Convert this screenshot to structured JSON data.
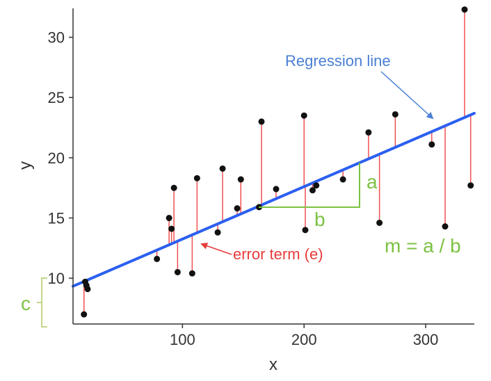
{
  "chart_data": {
    "type": "scatter",
    "xlabel": "x",
    "ylabel": "y",
    "xlim": [
      10,
      340
    ],
    "ylim": [
      6.2,
      32.4
    ],
    "x_ticks": [
      100,
      200,
      300
    ],
    "y_ticks": [
      10,
      15,
      20,
      25,
      30
    ],
    "grid": false,
    "regression": {
      "intercept": 8.9,
      "slope": 0.0435
    },
    "points": [
      {
        "x": 20,
        "y": 9.7
      },
      {
        "x": 21,
        "y": 9.4
      },
      {
        "x": 22,
        "y": 9.1
      },
      {
        "x": 19,
        "y": 7.0
      },
      {
        "x": 79,
        "y": 11.6
      },
      {
        "x": 89,
        "y": 15.0
      },
      {
        "x": 91,
        "y": 14.1
      },
      {
        "x": 93,
        "y": 17.5
      },
      {
        "x": 96,
        "y": 10.5
      },
      {
        "x": 108,
        "y": 10.4
      },
      {
        "x": 112,
        "y": 18.3
      },
      {
        "x": 129,
        "y": 13.8
      },
      {
        "x": 133,
        "y": 19.1
      },
      {
        "x": 145,
        "y": 15.8
      },
      {
        "x": 148,
        "y": 18.2
      },
      {
        "x": 163,
        "y": 15.9
      },
      {
        "x": 165,
        "y": 23.0
      },
      {
        "x": 177,
        "y": 17.4
      },
      {
        "x": 200,
        "y": 23.5
      },
      {
        "x": 201,
        "y": 14.0
      },
      {
        "x": 207,
        "y": 17.3
      },
      {
        "x": 210,
        "y": 17.7
      },
      {
        "x": 232,
        "y": 18.2
      },
      {
        "x": 253,
        "y": 22.1
      },
      {
        "x": 262,
        "y": 14.6
      },
      {
        "x": 275,
        "y": 23.6
      },
      {
        "x": 305,
        "y": 21.1
      },
      {
        "x": 316,
        "y": 14.3
      },
      {
        "x": 332,
        "y": 32.3
      },
      {
        "x": 337,
        "y": 17.7
      }
    ]
  },
  "annotations": {
    "regression_label": "Regression line",
    "error_label": "error term (e)",
    "a_label": "a",
    "b_label": "b",
    "slope_formula": "m = a / b",
    "c_label": "c"
  },
  "colors": {
    "line": "#2b5ff0",
    "residual": "#f05050",
    "point": "#111111",
    "blue_text": "#4a7fd6",
    "red_text": "#e83b3b",
    "green": "#7cc242",
    "axis": "#333333"
  }
}
